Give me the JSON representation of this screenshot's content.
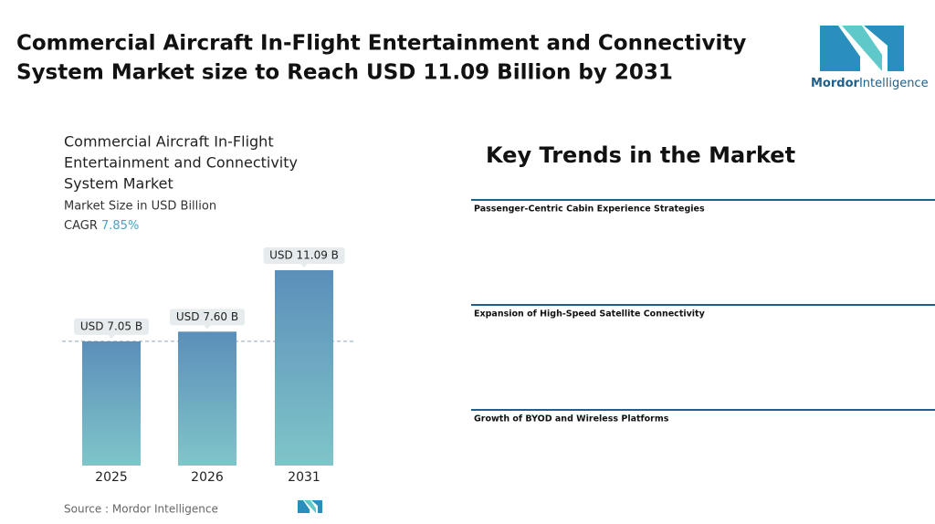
{
  "header": {
    "title_lines": [
      "Commercial Aircraft In-Flight Entertainment and Connectivity",
      "System Market size to Reach USD 11.09 Billion by 2031"
    ],
    "logo": {
      "brand": "Mordor",
      "suffix": "Intelligence"
    }
  },
  "chart_data": {
    "type": "bar",
    "title_lines": [
      "Commercial Aircraft In-Flight",
      "Entertainment and Connectivity",
      "System Market"
    ],
    "subtitle": "Market Size in USD Billion",
    "cagr": {
      "label": "CAGR",
      "value": "7.85%"
    },
    "categories": [
      "2025",
      "2026",
      "2031"
    ],
    "values": [
      7.05,
      7.6,
      11.09
    ],
    "value_labels": [
      "USD 7.05 B",
      "USD 7.60 B",
      "USD 11.09 B"
    ],
    "color": [
      "#5b8fba",
      "#80c5c9"
    ],
    "source": "Source :  Mordor Intelligence"
  },
  "trends": {
    "title": "Key Trends in the Market",
    "items": [
      "Passenger-Centric Cabin Experience Strategies",
      "Expansion of High-Speed Satellite Connectivity",
      "Growth of BYOD and Wireless Platforms"
    ]
  }
}
